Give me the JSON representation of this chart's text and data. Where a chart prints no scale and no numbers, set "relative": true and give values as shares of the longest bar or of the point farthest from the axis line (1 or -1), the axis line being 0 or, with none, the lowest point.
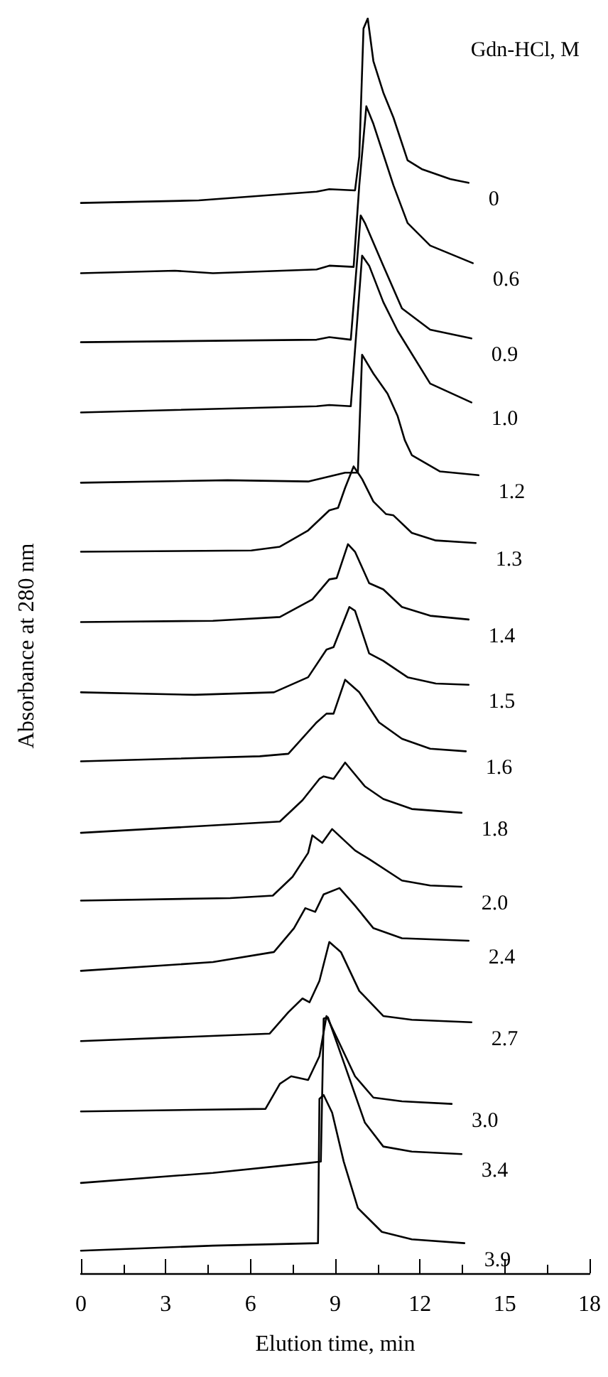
{
  "chart_data": {
    "type": "line",
    "relative": true,
    "xlabel": "Elution time, min",
    "ylabel": "Absorbance at 280 nm",
    "legend_title": "Gdn-HCl, M",
    "xlim": [
      0,
      18
    ],
    "xticks": [
      0,
      3,
      6,
      9,
      12,
      15,
      18
    ],
    "marker": "none",
    "line_style": "solid",
    "grid": false,
    "series": [
      {
        "name": "0",
        "color": "#000000",
        "x": [
          0,
          4.17,
          8.34,
          8.79,
          9.7,
          9.85,
          10.0,
          10.15,
          10.35,
          10.7,
          11.06,
          11.56,
          12.06,
          13.07,
          13.72
        ],
        "values": [
          0.853,
          0.855,
          0.862,
          0.864,
          0.863,
          0.89,
          0.992,
          1.0,
          0.966,
          0.941,
          0.921,
          0.887,
          0.88,
          0.872,
          0.869
        ]
      },
      {
        "name": "0.6",
        "color": "#000000",
        "x": [
          0,
          3.32,
          4.67,
          8.34,
          8.79,
          9.65,
          9.85,
          10.1,
          10.35,
          11.06,
          11.56,
          12.36,
          13.87
        ],
        "values": [
          0.797,
          0.799,
          0.797,
          0.8,
          0.803,
          0.802,
          0.867,
          0.93,
          0.916,
          0.867,
          0.837,
          0.819,
          0.805
        ]
      },
      {
        "name": "0.9",
        "color": "#000000",
        "x": [
          0,
          8.34,
          8.79,
          9.55,
          9.9,
          10.05,
          10.7,
          11.36,
          12.36,
          13.82
        ],
        "values": [
          0.742,
          0.744,
          0.746,
          0.744,
          0.843,
          0.837,
          0.803,
          0.769,
          0.752,
          0.745
        ]
      },
      {
        "name": "1.0",
        "color": "#000000",
        "x": [
          0,
          8.34,
          8.79,
          9.55,
          9.95,
          10.2,
          10.7,
          11.21,
          12.36,
          13.82
        ],
        "values": [
          0.686,
          0.691,
          0.692,
          0.691,
          0.811,
          0.803,
          0.774,
          0.751,
          0.709,
          0.694
        ]
      },
      {
        "name": "1.2",
        "color": "#000000",
        "x": [
          0,
          5.18,
          8.04,
          9.35,
          9.8,
          9.95,
          10.35,
          10.85,
          11.21,
          11.46,
          11.71,
          12.71,
          14.07
        ],
        "values": [
          0.63,
          0.632,
          0.631,
          0.638,
          0.638,
          0.732,
          0.717,
          0.701,
          0.683,
          0.664,
          0.652,
          0.639,
          0.636
        ]
      },
      {
        "name": "1.3",
        "color": "#000000",
        "x": [
          0,
          6.03,
          7.04,
          8.04,
          8.79,
          9.1,
          9.35,
          9.65,
          9.95,
          10.35,
          10.8,
          11.06,
          11.71,
          12.56,
          13.97
        ],
        "values": [
          0.575,
          0.576,
          0.579,
          0.592,
          0.608,
          0.61,
          0.626,
          0.643,
          0.633,
          0.615,
          0.605,
          0.604,
          0.59,
          0.584,
          0.582
        ]
      },
      {
        "name": "1.4",
        "color": "#000000",
        "x": [
          0,
          4.67,
          7.04,
          8.19,
          8.79,
          9.05,
          9.45,
          9.7,
          10.2,
          10.7,
          11.36,
          12.36,
          13.72
        ],
        "values": [
          0.519,
          0.52,
          0.523,
          0.537,
          0.553,
          0.554,
          0.581,
          0.575,
          0.55,
          0.545,
          0.531,
          0.524,
          0.521
        ]
      },
      {
        "name": "1.5",
        "color": "#000000",
        "x": [
          0,
          4.02,
          6.83,
          8.04,
          8.69,
          8.94,
          9.5,
          9.7,
          10.2,
          10.7,
          11.56,
          12.56,
          13.72
        ],
        "values": [
          0.463,
          0.461,
          0.463,
          0.475,
          0.497,
          0.499,
          0.531,
          0.528,
          0.494,
          0.488,
          0.475,
          0.47,
          0.469
        ]
      },
      {
        "name": "1.6",
        "color": "#000000",
        "x": [
          0,
          6.33,
          7.34,
          8.34,
          8.69,
          8.94,
          9.35,
          9.85,
          10.55,
          11.36,
          12.36,
          13.62
        ],
        "values": [
          0.408,
          0.412,
          0.414,
          0.439,
          0.446,
          0.446,
          0.473,
          0.463,
          0.439,
          0.426,
          0.418,
          0.416
        ]
      },
      {
        "name": "1.8",
        "color": "#000000",
        "x": [
          0,
          7.04,
          7.84,
          8.44,
          8.59,
          8.94,
          9.35,
          10.05,
          10.7,
          11.71,
          13.47
        ],
        "values": [
          0.351,
          0.36,
          0.377,
          0.394,
          0.396,
          0.394,
          0.407,
          0.388,
          0.378,
          0.37,
          0.367
        ]
      },
      {
        "name": "2.0",
        "color": "#000000",
        "x": [
          0,
          5.28,
          6.79,
          7.49,
          8.04,
          8.19,
          8.54,
          8.89,
          9.7,
          10.2,
          11.36,
          12.36,
          13.47
        ],
        "values": [
          0.297,
          0.299,
          0.301,
          0.316,
          0.335,
          0.349,
          0.343,
          0.354,
          0.337,
          0.33,
          0.313,
          0.309,
          0.308
        ]
      },
      {
        "name": "2.4",
        "color": "#000000",
        "x": [
          0,
          4.67,
          6.83,
          7.54,
          7.94,
          8.29,
          8.59,
          9.15,
          9.7,
          10.35,
          11.36,
          13.72
        ],
        "values": [
          0.241,
          0.248,
          0.256,
          0.275,
          0.291,
          0.288,
          0.302,
          0.307,
          0.293,
          0.275,
          0.267,
          0.265
        ]
      },
      {
        "name": "2.7",
        "color": "#000000",
        "x": [
          0,
          6.68,
          7.34,
          7.84,
          8.09,
          8.44,
          8.79,
          9.2,
          9.85,
          10.7,
          11.71,
          13.82
        ],
        "values": [
          0.185,
          0.191,
          0.208,
          0.219,
          0.216,
          0.233,
          0.264,
          0.256,
          0.225,
          0.205,
          0.202,
          0.2
        ]
      },
      {
        "name": "3.0",
        "color": "#000000",
        "x": [
          0,
          6.53,
          7.04,
          7.44,
          8.04,
          8.44,
          8.69,
          9.05,
          9.7,
          10.35,
          11.36,
          13.12
        ],
        "values": [
          0.129,
          0.131,
          0.151,
          0.157,
          0.154,
          0.173,
          0.205,
          0.188,
          0.157,
          0.14,
          0.137,
          0.135
        ]
      },
      {
        "name": "3.4",
        "color": "#000000",
        "x": [
          0,
          4.67,
          8.09,
          8.49,
          8.59,
          8.74,
          9.35,
          10.05,
          10.7,
          11.71,
          13.47
        ],
        "values": [
          0.072,
          0.08,
          0.088,
          0.089,
          0.203,
          0.204,
          0.165,
          0.12,
          0.101,
          0.097,
          0.095
        ]
      },
      {
        "name": "3.9",
        "color": "#000000",
        "x": [
          0,
          4.67,
          8.39,
          8.44,
          8.59,
          8.89,
          9.3,
          9.8,
          10.65,
          11.71,
          13.57
        ],
        "values": [
          0.018,
          0.022,
          0.024,
          0.139,
          0.142,
          0.128,
          0.089,
          0.052,
          0.033,
          0.027,
          0.024
        ]
      }
    ]
  }
}
